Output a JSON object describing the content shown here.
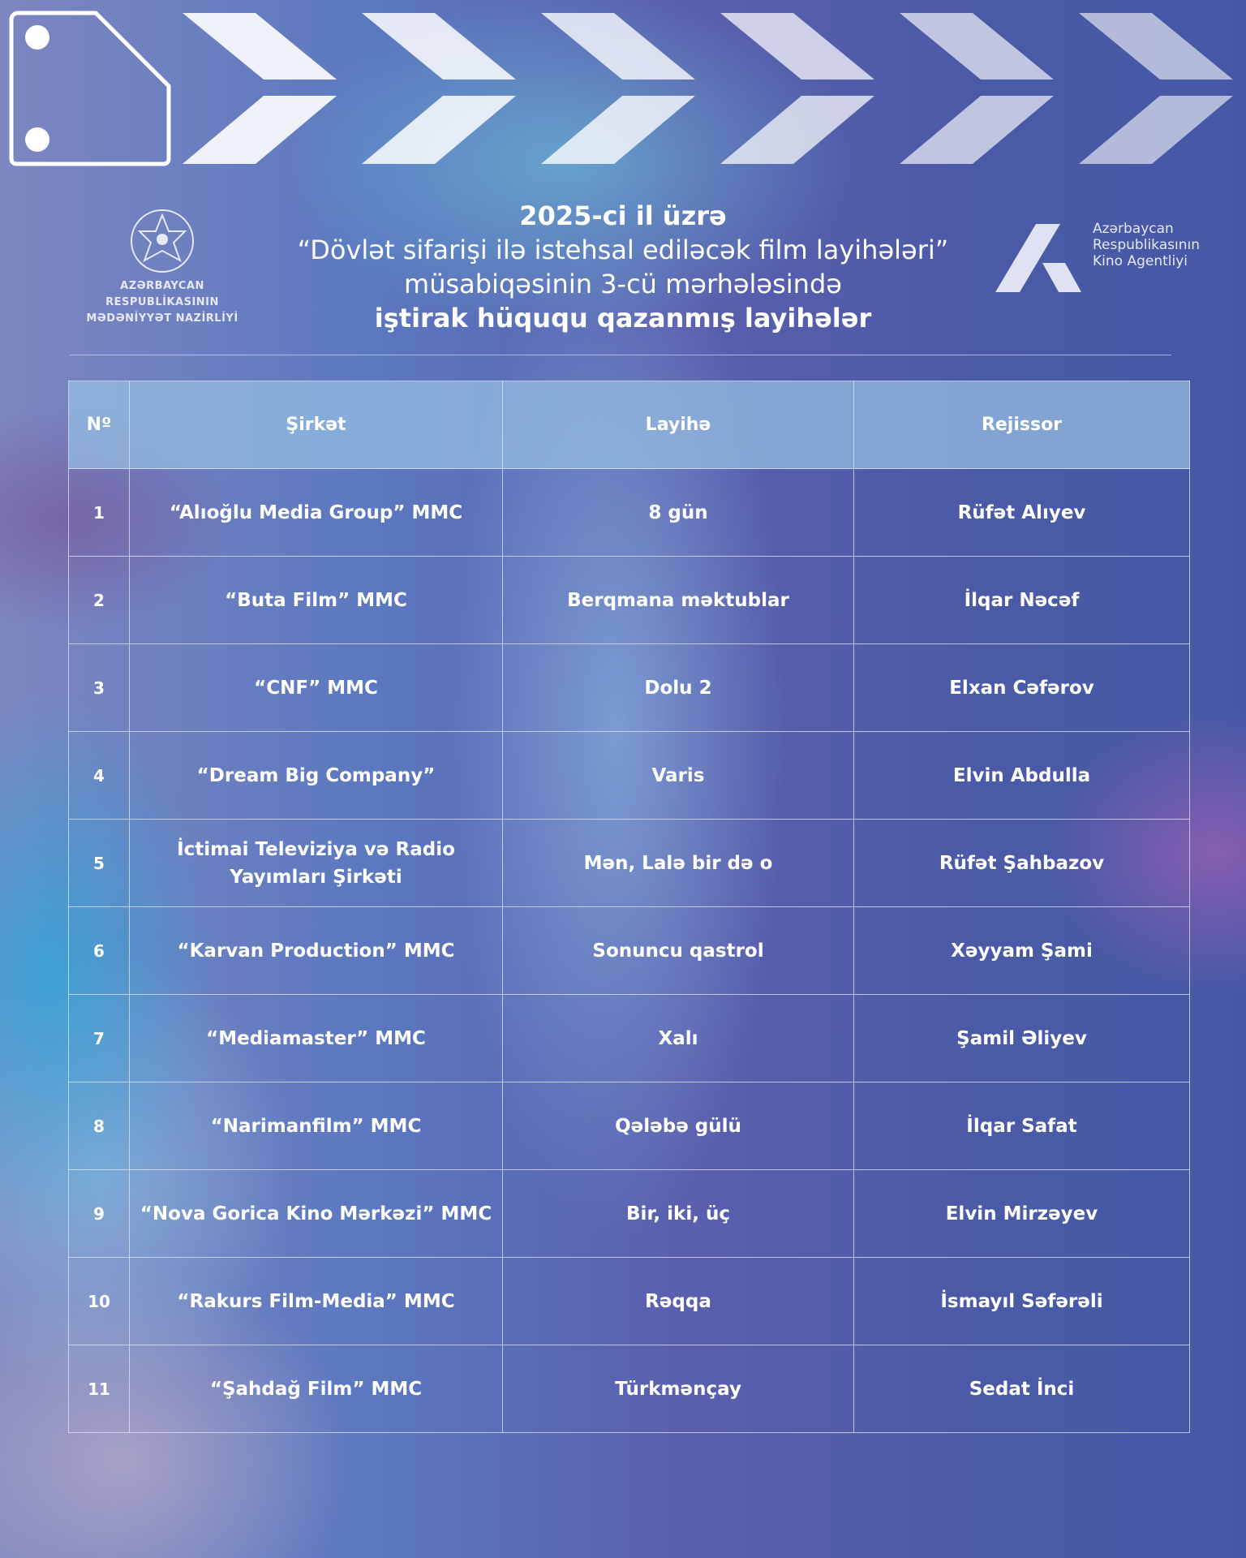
{
  "header": {
    "line1": "2025-ci il üzrə",
    "line2": "“Dövlət sifarişi ilə istehsal ediləcək film layihələri”",
    "line3": "müsabiqəsinin 3-cü mərhələsində",
    "line4": "iştirak hüququ qazanmış layihələr"
  },
  "logo_left": {
    "line1": "AZƏRBAYCAN RESPUBLİKASININ",
    "line2": "MƏDƏNİYYƏT NAZİRLİYİ"
  },
  "logo_right": {
    "line1": "Azərbaycan",
    "line2": "Respublikasının",
    "line3": "Kino Agentliyi"
  },
  "table": {
    "columns": [
      "Nº",
      "Şirkət",
      "Layihə",
      "Rejissor"
    ],
    "rows": [
      [
        "1",
        "“Alıoğlu Media Group” MMC",
        "8 gün",
        "Rüfət Alıyev"
      ],
      [
        "2",
        "“Buta Film” MMC",
        "Berqmana məktublar",
        "İlqar Nəcəf"
      ],
      [
        "3",
        "“CNF” MMC",
        "Dolu 2",
        "Elxan Cəfərov"
      ],
      [
        "4",
        "“Dream Big Company”",
        "Varis",
        "Elvin Abdulla"
      ],
      [
        "5",
        "İctimai Televiziya və Radio Yayımları Şirkəti",
        "Mən, Lalə bir də o",
        "Rüfət Şahbazov"
      ],
      [
        "6",
        "“Karvan Production” MMC",
        "Sonuncu qastrol",
        "Xəyyam Şami"
      ],
      [
        "7",
        "“Mediamaster” MMC",
        "Xalı",
        "Şamil Əliyev"
      ],
      [
        "8",
        "“Narimanfilm” MMC",
        "Qələbə gülü",
        "İlqar Safat"
      ],
      [
        "9",
        "“Nova Gorica Kino Mərkəzi” MMC",
        "Bir, iki, üç",
        "Elvin Mirzəyev"
      ],
      [
        "10",
        "“Rakurs Film-Media” MMC",
        "Rəqqa",
        "İsmayıl Səfərəli"
      ],
      [
        "11",
        "“Şahdağ Film” MMC",
        "Türkmənçay",
        "Sedat İnci"
      ]
    ]
  }
}
